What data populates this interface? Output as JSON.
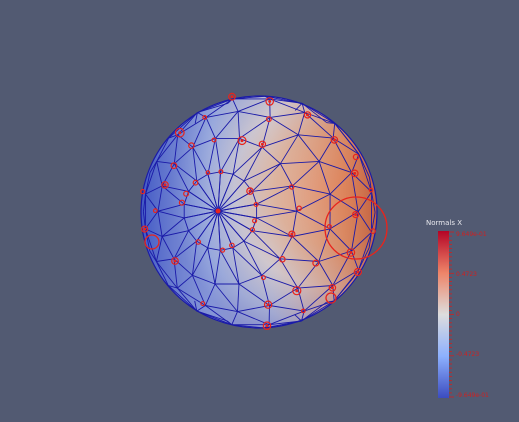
{
  "colorbar": {
    "title": "Normals X",
    "labels": [
      "9.649e-01",
      "0.4723",
      "0",
      "-0.4723",
      "-9.649e-01"
    ],
    "colors": {
      "high": "#b40426",
      "mid": "#dddddd",
      "low": "#3b4cc0"
    }
  },
  "scene": {
    "background": "#525a72",
    "wireframe_color": "#1a1aa8",
    "glyph_color": "#e8241c"
  }
}
